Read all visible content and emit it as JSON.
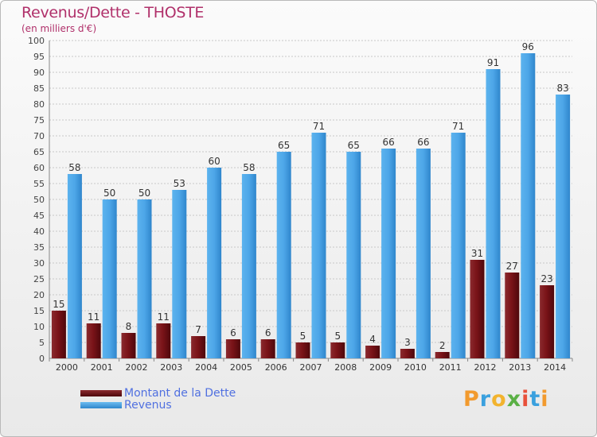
{
  "title": "Revenus/Dette - THOSTE",
  "subtitle": "(en milliers d'€)",
  "logo": {
    "letters": [
      "P",
      "r",
      "o",
      "x",
      "i",
      "t",
      "i"
    ]
  },
  "legend": [
    {
      "label": "Montant de la Dette",
      "color": "#7a1318"
    },
    {
      "label": "Revenus",
      "color": "#4da6e8"
    }
  ],
  "chart_data": {
    "type": "bar",
    "title": "Revenus/Dette - THOSTE",
    "ylabel": "(en milliers d'€)",
    "xlabel": "",
    "ylim": [
      0,
      100
    ],
    "ytick_step": 5,
    "grid": true,
    "legend_position": "bottom-left",
    "categories": [
      "2000",
      "2001",
      "2002",
      "2003",
      "2004",
      "2005",
      "2006",
      "2007",
      "2008",
      "2009",
      "2010",
      "2011",
      "2012",
      "2013",
      "2014"
    ],
    "series": [
      {
        "name": "Montant de la Dette",
        "color": "#7a1318",
        "values": [
          15,
          11,
          8,
          11,
          7,
          6,
          6,
          5,
          5,
          4,
          3,
          2,
          31,
          27,
          23
        ]
      },
      {
        "name": "Revenus",
        "color": "#4da6e8",
        "values": [
          58,
          50,
          50,
          53,
          60,
          58,
          65,
          71,
          65,
          66,
          66,
          71,
          91,
          96,
          83
        ]
      }
    ]
  }
}
